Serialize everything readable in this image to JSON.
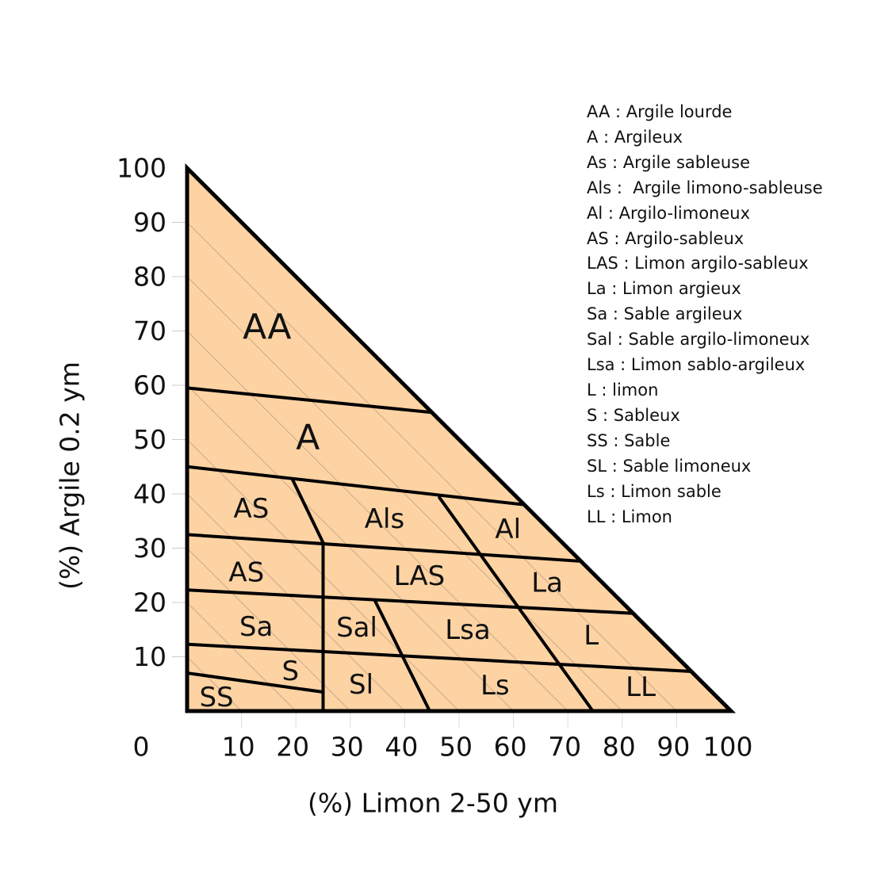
{
  "chart_data": {
    "type": "ternary-texture-diagram",
    "xlabel": "(%) Limon 2-50  ym",
    "ylabel": "(%) Argile 0.2 ym",
    "xlim": [
      0,
      100
    ],
    "ylim": [
      0,
      100
    ],
    "x_origin_label": "0",
    "x_ticks": [
      "10",
      "20",
      "30",
      "40",
      "50",
      "60",
      "70",
      "80",
      "90",
      "100"
    ],
    "y_ticks": [
      "10",
      "20",
      "30",
      "40",
      "50",
      "60",
      "70",
      "80",
      "90",
      "100"
    ],
    "fill_color": "#FDD3A3",
    "line_color": "#000000",
    "hatch_color": "#C9A98A",
    "boundary": [
      [
        0,
        0
      ],
      [
        0,
        100
      ],
      [
        100,
        0
      ]
    ],
    "dividers": [
      [
        [
          0,
          59.5
        ],
        [
          45,
          55
        ]
      ],
      [
        [
          0,
          45
        ],
        [
          62,
          38
        ]
      ],
      [
        [
          0,
          32.5
        ],
        [
          72.3,
          27.6
        ]
      ],
      [
        [
          0,
          22.3
        ],
        [
          82,
          18
        ]
      ],
      [
        [
          0,
          12.3
        ],
        [
          92.7,
          7.3
        ]
      ],
      [
        [
          0,
          7
        ],
        [
          25,
          3.5
        ]
      ],
      [
        [
          25,
          0
        ],
        [
          25,
          31
        ]
      ],
      [
        [
          19.4,
          42.6
        ],
        [
          25,
          31
        ]
      ],
      [
        [
          46.4,
          39.3
        ],
        [
          74.6,
          0
        ]
      ],
      [
        [
          34.5,
          20.4
        ],
        [
          44.6,
          0
        ]
      ]
    ],
    "regions": [
      {
        "code": "AA",
        "x": 14.7,
        "y": 70.7,
        "big": true
      },
      {
        "code": "A",
        "x": 22.2,
        "y": 50.4,
        "big": true
      },
      {
        "code": "AS",
        "x": 11.8,
        "y": 37.2
      },
      {
        "code": "Als",
        "x": 36.3,
        "y": 35.3
      },
      {
        "code": "Al",
        "x": 59,
        "y": 33.4
      },
      {
        "code": "AS",
        "x": 10.9,
        "y": 25.5
      },
      {
        "code": "LAS",
        "x": 42.7,
        "y": 24.8
      },
      {
        "code": "La",
        "x": 66.2,
        "y": 23.6
      },
      {
        "code": "Sa",
        "x": 12.7,
        "y": 15.5
      },
      {
        "code": "Sal",
        "x": 31.2,
        "y": 15.3
      },
      {
        "code": "Lsa",
        "x": 51.6,
        "y": 14.9
      },
      {
        "code": "L",
        "x": 74.3,
        "y": 13.9
      },
      {
        "code": "S",
        "x": 19,
        "y": 7.3
      },
      {
        "code": "SS",
        "x": 5.4,
        "y": 2.5
      },
      {
        "code": "Sl",
        "x": 32,
        "y": 4.8
      },
      {
        "code": "Ls",
        "x": 56.6,
        "y": 4.7
      },
      {
        "code": "LL",
        "x": 83.4,
        "y": 4.4
      }
    ]
  },
  "legend": [
    "AA : Argile lourde",
    "A : Argileux",
    "As : Argile sableuse",
    "Als :  Argile limono-sableuse",
    "Al : Argilo-limoneux",
    "AS : Argilo-sableux",
    "LAS : Limon argilo-sableux",
    "La : Limon argieux",
    "Sa : Sable argileux",
    "Sal : Sable argilo-limoneux",
    "Lsa : Limon sablo-argileux",
    "L : limon",
    "S : Sableux",
    "SS : Sable",
    "SL : Sable limoneux",
    "Ls : Limon sable",
    "LL : Limon"
  ]
}
